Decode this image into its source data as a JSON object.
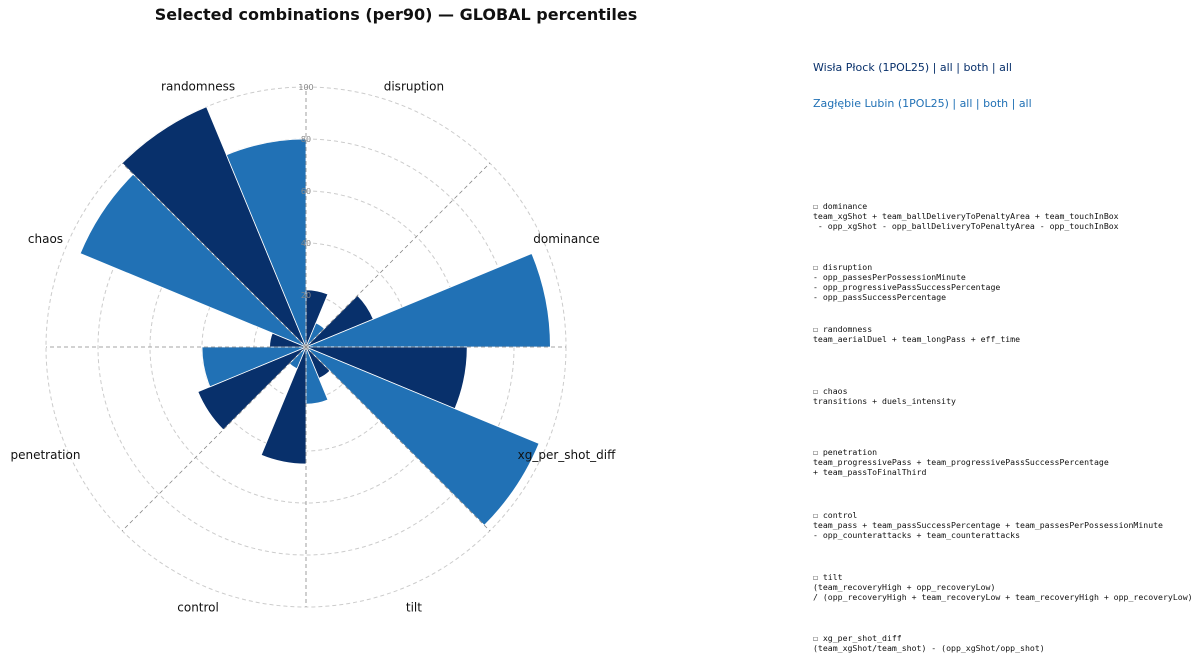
{
  "chart_data": {
    "type": "polar-bar",
    "title": "Selected combinations (per90) — GLOBAL percentiles",
    "rlim": [
      0,
      100
    ],
    "r_ticks": [
      "20",
      "40",
      "60",
      "80",
      "100"
    ],
    "categories": [
      "disruption",
      "dominance",
      "xg_per_shot_diff",
      "tilt",
      "control",
      "penetration",
      "chaos",
      "randomness"
    ],
    "series": [
      {
        "name": "Wisła Płock (1POL25) | all | both | all",
        "color": "#08306b",
        "values": [
          22,
          28,
          62,
          13,
          45,
          45,
          14,
          100
        ]
      },
      {
        "name": "Zagłębie Lubin (1POL25) | all | both | all",
        "color": "#2171b5",
        "values": [
          10,
          94,
          97,
          22,
          9,
          40,
          94,
          80
        ]
      }
    ],
    "grid": true,
    "legend_position": "top-right"
  },
  "definitions": [
    {
      "label": "☐ dominance",
      "formula": "team_xgShot + team_ballDeliveryToPenaltyArea + team_touchInBox\n - opp_xgShot - opp_ballDeliveryToPenaltyArea - opp_touchInBox"
    },
    {
      "label": "☐ disruption",
      "formula": "- opp_passesPerPossessionMinute\n- opp_progressivePassSuccessPercentage\n- opp_passSuccessPercentage"
    },
    {
      "label": "☐ randomness",
      "formula": "team_aerialDuel + team_longPass + eff_time"
    },
    {
      "label": "☐ chaos",
      "formula": "transitions + duels_intensity"
    },
    {
      "label": "☐ penetration",
      "formula": "team_progressivePass + team_progressivePassSuccessPercentage\n+ team_passToFinalThird"
    },
    {
      "label": "☐ control",
      "formula": "team_pass + team_passSuccessPercentage + team_passesPerPossessionMinute\n- opp_counterattacks + team_counterattacks"
    },
    {
      "label": "☐ tilt",
      "formula": "(team_recoveryHigh + opp_recoveryLow)\n/ (opp_recoveryHigh + team_recoveryLow + team_recoveryHigh + opp_recoveryLow)"
    },
    {
      "label": "☐ xg_per_shot_diff",
      "formula": "(team_xgShot/team_shot) - (opp_xgShot/opp_shot)"
    }
  ]
}
